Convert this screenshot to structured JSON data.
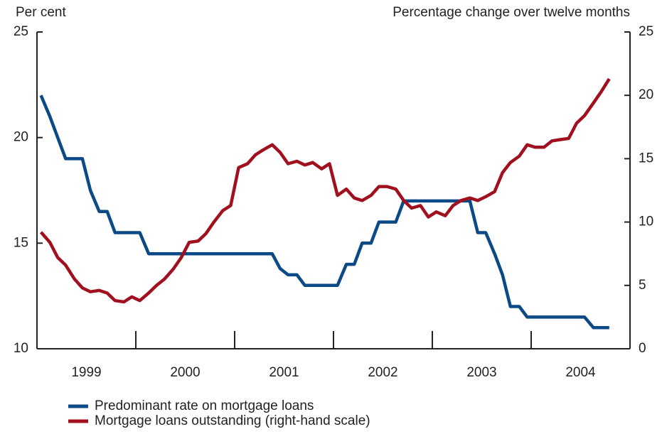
{
  "chart_data": {
    "type": "line",
    "y_label": "Per cent",
    "y2_label": "Percentage change over twelve months",
    "xlim": [
      1999,
      2005
    ],
    "xticks": [
      2000,
      2001,
      2002,
      2003,
      2004
    ],
    "xlabels": [
      1999,
      2000,
      2001,
      2002,
      2003,
      2004
    ],
    "ylim": [
      10,
      25
    ],
    "yticks": [
      10,
      15,
      20,
      25
    ],
    "y2lim": [
      0,
      25
    ],
    "y2ticks": [
      0,
      5,
      10,
      15,
      20,
      25
    ],
    "x": [
      1999.04,
      1999.13,
      1999.21,
      1999.29,
      1999.38,
      1999.46,
      1999.54,
      1999.63,
      1999.71,
      1999.79,
      1999.88,
      1999.96,
      2000.04,
      2000.13,
      2000.21,
      2000.29,
      2000.38,
      2000.46,
      2000.54,
      2000.63,
      2000.71,
      2000.79,
      2000.88,
      2000.96,
      2001.04,
      2001.13,
      2001.21,
      2001.29,
      2001.38,
      2001.46,
      2001.54,
      2001.63,
      2001.71,
      2001.79,
      2001.88,
      2001.96,
      2002.04,
      2002.13,
      2002.21,
      2002.29,
      2002.38,
      2002.46,
      2002.54,
      2002.63,
      2002.71,
      2002.79,
      2002.88,
      2002.96,
      2003.04,
      2003.13,
      2003.21,
      2003.29,
      2003.38,
      2003.46,
      2003.54,
      2003.63,
      2003.71,
      2003.79,
      2003.88,
      2003.96,
      2004.04,
      2004.13,
      2004.21,
      2004.29,
      2004.38,
      2004.46,
      2004.54,
      2004.63,
      2004.71,
      2004.79
    ],
    "series": [
      {
        "name": "Predominant rate on mortgage loans",
        "color": "#0b4a86",
        "axis": "y",
        "values": [
          22,
          21,
          20,
          19,
          19,
          19,
          17.5,
          16.5,
          16.5,
          15.5,
          15.5,
          15.5,
          15.5,
          14.5,
          14.5,
          14.5,
          14.5,
          14.5,
          14.5,
          14.5,
          14.5,
          14.5,
          14.5,
          14.5,
          14.5,
          14.5,
          14.5,
          14.5,
          14.5,
          13.8,
          13.5,
          13.5,
          13,
          13,
          13,
          13,
          13,
          14,
          14,
          15,
          15,
          16,
          16,
          16,
          17,
          17,
          17,
          17,
          17,
          17,
          17,
          17,
          17,
          15.5,
          15.5,
          14.5,
          13.5,
          12,
          12,
          11.5,
          11.5,
          11.5,
          11.5,
          11.5,
          11.5,
          11.5,
          11.5,
          11,
          11,
          11
        ]
      },
      {
        "name": "Mortgage loans outstanding (right-hand scale)",
        "color": "#a0101e",
        "axis": "y2",
        "values": [
          9.2,
          8.4,
          7.2,
          6.6,
          5.5,
          4.8,
          4.5,
          4.6,
          4.4,
          3.8,
          3.7,
          4.1,
          3.8,
          4.4,
          5.0,
          5.5,
          6.3,
          7.2,
          8.4,
          8.5,
          9.1,
          10.0,
          10.9,
          11.3,
          14.3,
          14.6,
          15.3,
          15.7,
          16.1,
          15.5,
          14.6,
          14.8,
          14.5,
          14.7,
          14.2,
          14.6,
          12.1,
          12.6,
          11.9,
          11.7,
          12.1,
          12.8,
          12.8,
          12.6,
          11.7,
          11.1,
          11.3,
          10.4,
          10.8,
          10.5,
          11.3,
          11.7,
          11.9,
          11.7,
          12.0,
          12.4,
          13.9,
          14.7,
          15.2,
          16.1,
          15.9,
          15.9,
          16.4,
          16.5,
          16.6,
          17.8,
          18.4,
          19.4,
          20.3,
          21.3
        ]
      }
    ]
  }
}
